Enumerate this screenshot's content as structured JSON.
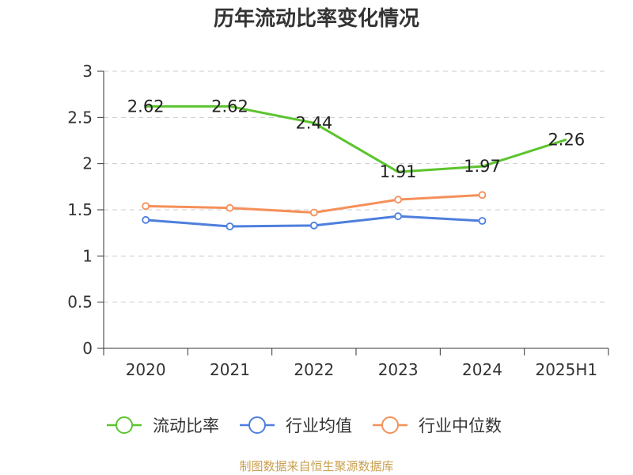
{
  "chart_data": {
    "type": "line",
    "title": "历年流动比率变化情况",
    "categories": [
      "2020",
      "2021",
      "2022",
      "2023",
      "2024",
      "2025H1"
    ],
    "ylim": [
      0,
      3
    ],
    "yticks": [
      0,
      0.5,
      1,
      1.5,
      2,
      2.5,
      3
    ],
    "grid": true,
    "legend_position": "bottom",
    "series": [
      {
        "name": "流动比率",
        "color": "#5cc42e",
        "values": [
          2.62,
          2.62,
          2.44,
          1.91,
          1.97,
          2.26
        ],
        "show_labels": true
      },
      {
        "name": "行业均值",
        "color": "#4e7fde",
        "values": [
          1.39,
          1.32,
          1.33,
          1.43,
          1.38,
          null
        ],
        "show_labels": false
      },
      {
        "name": "行业中位数",
        "color": "#f5905a",
        "values": [
          1.54,
          1.52,
          1.47,
          1.61,
          1.66,
          null
        ],
        "show_labels": false
      }
    ]
  },
  "source_text": "制图数据来自恒生聚源数据库"
}
